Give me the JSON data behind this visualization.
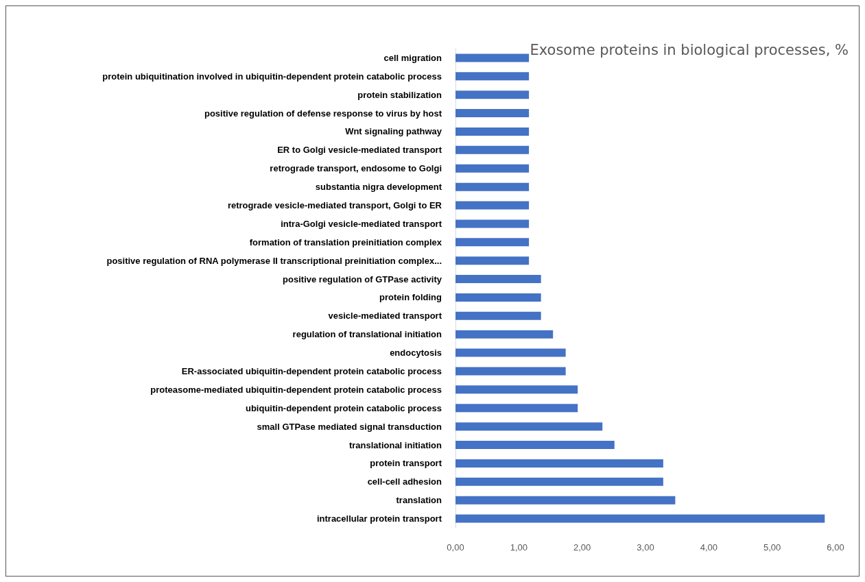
{
  "chart_data": {
    "type": "bar",
    "orientation": "horizontal",
    "title": "Exosome proteins in biological processes, %",
    "categories": [
      "cell migration",
      "protein ubiquitination involved in ubiquitin-dependent protein catabolic process",
      "protein stabilization",
      "positive regulation of defense response to virus by host",
      "Wnt signaling pathway",
      "ER to Golgi vesicle-mediated transport",
      "retrograde transport, endosome to Golgi",
      "substantia nigra development",
      "retrograde vesicle-mediated transport, Golgi to ER",
      "intra-Golgi vesicle-mediated transport",
      "formation of translation preinitiation complex",
      "positive regulation of RNA polymerase II transcriptional preinitiation complex...",
      "positive regulation of GTPase activity",
      "protein folding",
      "vesicle-mediated transport",
      "regulation of translational initiation",
      "endocytosis",
      "ER-associated ubiquitin-dependent protein catabolic process",
      "proteasome-mediated ubiquitin-dependent protein catabolic process",
      "ubiquitin-dependent protein catabolic process",
      "small GTPase mediated signal transduction",
      "translational initiation",
      "protein transport",
      "cell-cell adhesion",
      "translation",
      "intracellular protein transport"
    ],
    "values": [
      1.16,
      1.16,
      1.16,
      1.16,
      1.16,
      1.16,
      1.16,
      1.16,
      1.16,
      1.16,
      1.16,
      1.16,
      1.35,
      1.35,
      1.35,
      1.54,
      1.74,
      1.74,
      1.93,
      1.93,
      2.32,
      2.51,
      3.28,
      3.28,
      3.47,
      5.83
    ],
    "color": "#4472c4",
    "xlim": [
      0,
      6
    ],
    "xticks": [
      {
        "value": 0,
        "label": "0,00"
      },
      {
        "value": 1,
        "label": "1,00"
      },
      {
        "value": 2,
        "label": "2,00"
      },
      {
        "value": 3,
        "label": "3,00"
      },
      {
        "value": 4,
        "label": "4,00"
      },
      {
        "value": 5,
        "label": "5,00"
      },
      {
        "value": 6,
        "label": "6,00"
      }
    ],
    "grid": false
  }
}
